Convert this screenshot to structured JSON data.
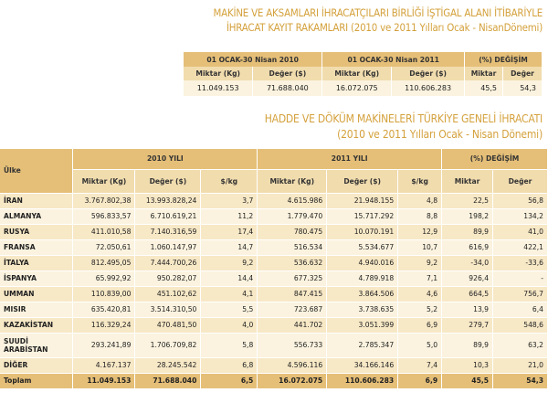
{
  "title1": {
    "line1": "MAKİNE VE AKSAMLARI İHRACATÇILARI BİRLİĞİ İŞTİGAL ALANI İTİBARİYLE",
    "line2": "İHRACAT KAYIT RAKAMLARI (2010 ve 2011 Yılları Ocak - NisanDönemi)"
  },
  "summary": {
    "period2010": "01 OCAK-30 Nisan 2010",
    "period2011": "01 OCAK-30 Nisan 2011",
    "change": "(%) DEĞİŞİM",
    "miktar_kg": "Miktar (Kg)",
    "deger_usd": "Değer ($)",
    "miktar": "Miktar",
    "deger": "Değer",
    "values": [
      "11.049.153",
      "71.688.040",
      "16.072.075",
      "110.606.283",
      "45,5",
      "54,3"
    ]
  },
  "title2": {
    "line1": "HADDE VE DÖKÜM MAKİNELERİ TÜRKİYE GENELİ İHRACATI",
    "line2": "(2010 ve 2011 Yılları Ocak - Nisan Dönemi)"
  },
  "table": {
    "country_header": "Ülke",
    "year2010": "2010 YILI",
    "year2011": "2011 YILI",
    "change": "(%) DEĞİŞİM",
    "miktar_kg": "Miktar (Kg)",
    "deger_usd": "Değer ($)",
    "per_kg": "$/kg",
    "miktar": "Miktar",
    "deger": "Değer",
    "rows": [
      {
        "country": "İRAN",
        "m10": "3.767.802,38",
        "d10": "13.993.828,24",
        "p10": "3,7",
        "m11": "4.615.986",
        "d11": "21.948.155",
        "p11": "4,8",
        "cm": "22,5",
        "cd": "56,8"
      },
      {
        "country": "ALMANYA",
        "m10": "596.833,57",
        "d10": "6.710.619,21",
        "p10": "11,2",
        "m11": "1.779.470",
        "d11": "15.717.292",
        "p11": "8,8",
        "cm": "198,2",
        "cd": "134,2"
      },
      {
        "country": "RUSYA",
        "m10": "411.010,58",
        "d10": "7.140.316,59",
        "p10": "17,4",
        "m11": "780.475",
        "d11": "10.070.191",
        "p11": "12,9",
        "cm": "89,9",
        "cd": "41,0"
      },
      {
        "country": "FRANSA",
        "m10": "72.050,61",
        "d10": "1.060.147,97",
        "p10": "14,7",
        "m11": "516.534",
        "d11": "5.534.677",
        "p11": "10,7",
        "cm": "616,9",
        "cd": "422,1"
      },
      {
        "country": "İTALYA",
        "m10": "812.495,05",
        "d10": "7.444.700,26",
        "p10": "9,2",
        "m11": "536.632",
        "d11": "4.940.016",
        "p11": "9,2",
        "cm": "-34,0",
        "cd": "-33,6"
      },
      {
        "country": "İSPANYA",
        "m10": "65.992,92",
        "d10": "950.282,07",
        "p10": "14,4",
        "m11": "677.325",
        "d11": "4.789.918",
        "p11": "7,1",
        "cm": "926,4",
        "cd": "-"
      },
      {
        "country": "UMMAN",
        "m10": "110.839,00",
        "d10": "451.102,62",
        "p10": "4,1",
        "m11": "847.415",
        "d11": "3.864.506",
        "p11": "4,6",
        "cm": "664,5",
        "cd": "756,7"
      },
      {
        "country": "MISIR",
        "m10": "635.420,81",
        "d10": "3.514.310,50",
        "p10": "5,5",
        "m11": "723.687",
        "d11": "3.738.635",
        "p11": "5,2",
        "cm": "13,9",
        "cd": "6,4"
      },
      {
        "country": "KAZAKİSTAN",
        "m10": "116.329,24",
        "d10": "470.481,50",
        "p10": "4,0",
        "m11": "441.702",
        "d11": "3.051.399",
        "p11": "6,9",
        "cm": "279,7",
        "cd": "548,6"
      },
      {
        "country": "SUUDİ ARABİSTAN",
        "m10": "293.241,89",
        "d10": "1.706.709,82",
        "p10": "5,8",
        "m11": "556.733",
        "d11": "2.785.347",
        "p11": "5,0",
        "cm": "89,9",
        "cd": "63,2"
      },
      {
        "country": "DİĞER",
        "m10": "4.167.137",
        "d10": "28.245.542",
        "p10": "6,8",
        "m11": "4.596.116",
        "d11": "34.166.146",
        "p11": "7,4",
        "cm": "10,3",
        "cd": "21,0"
      }
    ],
    "total": {
      "country": "Toplam",
      "m10": "11.049.153",
      "d10": "71.688.040",
      "p10": "6,5",
      "m11": "16.072.075",
      "d11": "110.606.283",
      "p11": "6,9",
      "cm": "45,5",
      "cd": "54,3"
    }
  }
}
